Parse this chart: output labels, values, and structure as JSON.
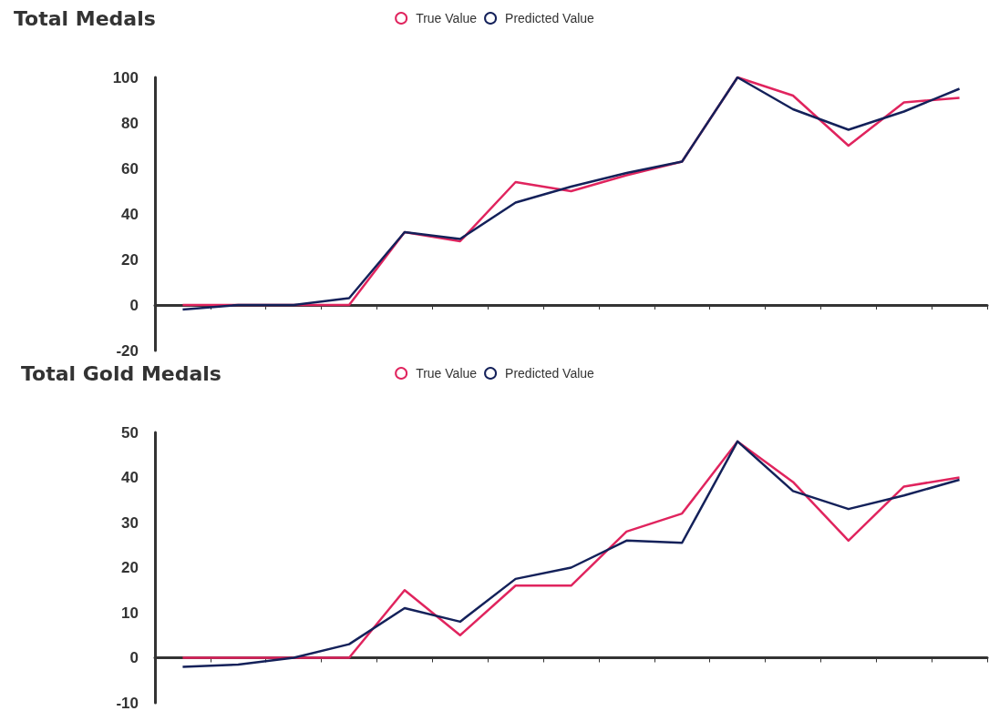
{
  "chart_data": [
    {
      "type": "line",
      "title": "Total Medals",
      "categories": [
        null,
        null,
        null,
        null,
        null,
        null,
        null,
        null,
        null,
        null,
        null,
        null,
        null,
        null,
        null
      ],
      "ylim": [
        -20,
        100
      ],
      "yticks": [
        -20,
        0,
        20,
        40,
        60,
        80,
        100
      ],
      "legend": "top",
      "series": [
        {
          "name": "True Value",
          "color": "#e0245e",
          "values": [
            0,
            0,
            0,
            0,
            32,
            28,
            54,
            50,
            57,
            63,
            100,
            92,
            70,
            89,
            91
          ]
        },
        {
          "name": "Predicted Value",
          "color": "#14215a",
          "values": [
            -2,
            0,
            0,
            3,
            32,
            29,
            45,
            52,
            58,
            63,
            100,
            86,
            77,
            85,
            95
          ]
        }
      ]
    },
    {
      "type": "line",
      "title": "Total Gold Medals",
      "categories": [
        null,
        null,
        null,
        null,
        null,
        null,
        null,
        null,
        null,
        null,
        null,
        null,
        null,
        null,
        null
      ],
      "ylim": [
        -10,
        50
      ],
      "yticks": [
        -10,
        0,
        10,
        20,
        30,
        40,
        50
      ],
      "legend": "top",
      "series": [
        {
          "name": "True Value",
          "color": "#e0245e",
          "values": [
            0,
            0,
            0,
            0,
            15,
            5,
            16,
            16,
            28,
            32,
            48,
            39,
            26,
            38,
            40
          ]
        },
        {
          "name": "Predicted Value",
          "color": "#14215a",
          "values": [
            -2,
            -1.5,
            0,
            3,
            11,
            8,
            17.5,
            20,
            26,
            25.5,
            48,
            37,
            33,
            36,
            39.5
          ]
        }
      ]
    }
  ]
}
